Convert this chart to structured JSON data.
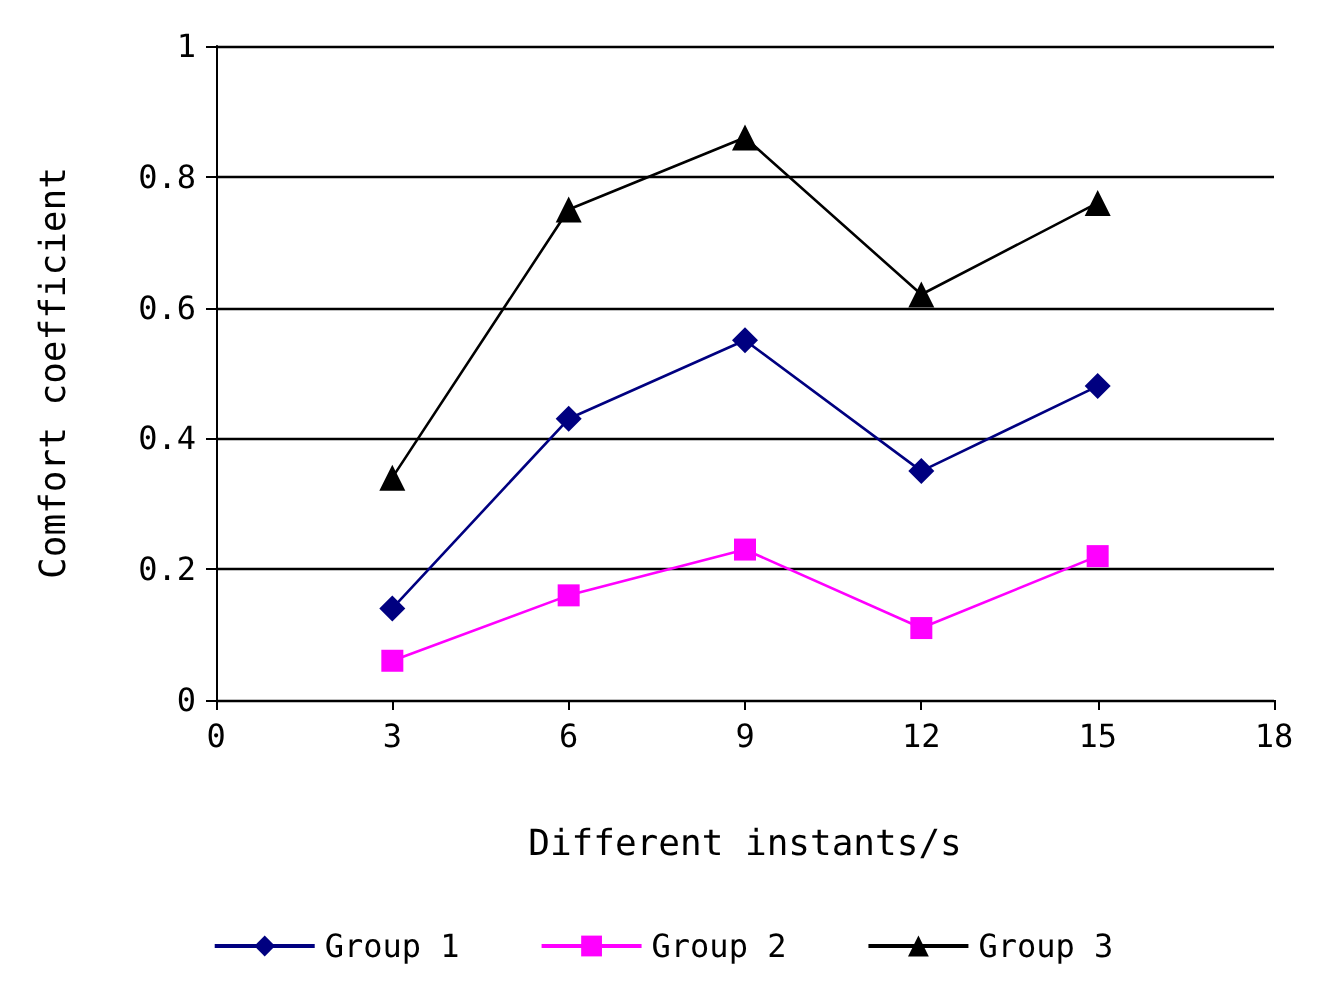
{
  "chart_data": {
    "type": "line",
    "xlabel": "Different instants/s",
    "ylabel": "Comfort coefficient",
    "x": [
      3,
      6,
      9,
      12,
      15
    ],
    "series": [
      {
        "name": "Group 1",
        "color": "#000080",
        "marker": "diamond",
        "values": [
          0.14,
          0.43,
          0.55,
          0.35,
          0.48
        ]
      },
      {
        "name": "Group 2",
        "color": "#ff00ff",
        "marker": "square",
        "values": [
          0.06,
          0.16,
          0.23,
          0.11,
          0.22
        ]
      },
      {
        "name": "Group 3",
        "color": "#000000",
        "marker": "triangle",
        "values": [
          0.34,
          0.75,
          0.86,
          0.62,
          0.76
        ]
      }
    ],
    "xlim": [
      0,
      18
    ],
    "xticks": [
      0,
      3,
      6,
      9,
      12,
      15,
      18
    ],
    "ylim": [
      0,
      1
    ],
    "yticks": [
      0,
      0.2,
      0.4,
      0.6,
      0.8,
      1
    ],
    "grid": "y",
    "legend": "bottom",
    "line_style": "solid"
  }
}
